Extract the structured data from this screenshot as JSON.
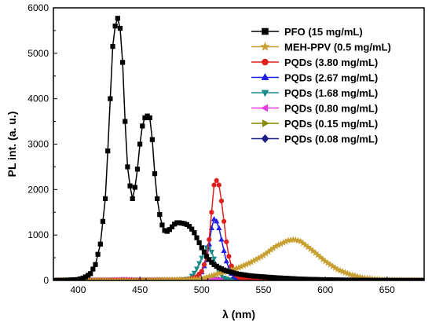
{
  "chart_data": {
    "type": "line",
    "xlabel": "λ (nm)",
    "ylabel": "PL int. (a. u.)",
    "xlim": [
      380,
      680
    ],
    "ylim": [
      0,
      6000
    ],
    "x_ticks": [
      400,
      450,
      500,
      550,
      600,
      650
    ],
    "y_ticks": [
      0,
      1000,
      2000,
      3000,
      4000,
      5000,
      6000
    ],
    "legend_position": "top-right",
    "series": [
      {
        "name": "PFO (15 mg/mL)",
        "color": "#000000",
        "marker": "square",
        "x": [
          380,
          390,
          400,
          405,
          410,
          414,
          418,
          422,
          424,
          426,
          428,
          430,
          432,
          434,
          436,
          438,
          440,
          442,
          444,
          446,
          448,
          450,
          452,
          454,
          456,
          458,
          460,
          462,
          464,
          466,
          468,
          470,
          472,
          474,
          476,
          478,
          480,
          482,
          484,
          486,
          488,
          490,
          492,
          494,
          496,
          498,
          500,
          502,
          504,
          506,
          508,
          510,
          512,
          514,
          516,
          518,
          520,
          522,
          524,
          526,
          528,
          530,
          535,
          540,
          550,
          560,
          570,
          580,
          600,
          620,
          650,
          680
        ],
        "y": [
          0,
          5,
          20,
          60,
          150,
          350,
          800,
          1800,
          2850,
          4000,
          5150,
          5600,
          5770,
          5550,
          4800,
          3500,
          2500,
          2080,
          1800,
          2050,
          2450,
          3000,
          3400,
          3580,
          3620,
          3580,
          3100,
          2350,
          1800,
          1450,
          1220,
          1100,
          1080,
          1120,
          1180,
          1240,
          1270,
          1270,
          1260,
          1250,
          1230,
          1190,
          1130,
          1050,
          940,
          830,
          720,
          620,
          530,
          460,
          400,
          350,
          310,
          280,
          255,
          230,
          210,
          195,
          180,
          165,
          150,
          140,
          120,
          100,
          80,
          60,
          45,
          30,
          15,
          5,
          2,
          0
        ]
      },
      {
        "name": "MEH-PPV (0.5 mg/mL)",
        "color": "#c8a032",
        "marker": "star",
        "x": [
          380,
          450,
          500,
          510,
          520,
          530,
          540,
          550,
          560,
          570,
          575,
          580,
          590,
          600,
          610,
          620,
          630,
          640,
          650,
          660,
          670,
          680
        ],
        "y": [
          0,
          0,
          30,
          120,
          200,
          280,
          400,
          550,
          750,
          880,
          900,
          860,
          650,
          420,
          240,
          130,
          60,
          30,
          10,
          5,
          2,
          0
        ]
      },
      {
        "name": "PQDs (3.80 mg/mL)",
        "color": "#e0201e",
        "marker": "circle",
        "x": [
          380,
          480,
          490,
          496,
          500,
          504,
          506,
          508,
          510,
          512,
          514,
          516,
          518,
          520,
          522,
          524,
          526,
          528,
          530,
          534,
          540,
          550,
          570,
          680
        ],
        "y": [
          0,
          5,
          20,
          80,
          200,
          500,
          900,
          1500,
          2100,
          2200,
          2100,
          1750,
          1300,
          850,
          530,
          320,
          190,
          110,
          70,
          35,
          20,
          10,
          5,
          0
        ]
      },
      {
        "name": "PQDs (2.67 mg/mL)",
        "color": "#1e1ee6",
        "marker": "triangle-up",
        "x": [
          380,
          480,
          490,
          496,
          500,
          504,
          506,
          508,
          510,
          512,
          514,
          516,
          518,
          520,
          522,
          524,
          526,
          530,
          540,
          680
        ],
        "y": [
          0,
          5,
          20,
          80,
          180,
          450,
          800,
          1150,
          1350,
          1300,
          1150,
          900,
          650,
          420,
          260,
          150,
          90,
          40,
          10,
          0
        ]
      },
      {
        "name": "PQDs (1.68 mg/mL)",
        "color": "#1e8a8a",
        "marker": "triangle-down",
        "x": [
          380,
          480,
          490,
          495,
          500,
          503,
          505,
          507,
          509,
          511,
          513,
          515,
          518,
          522,
          530,
          680
        ],
        "y": [
          0,
          5,
          40,
          200,
          500,
          700,
          750,
          700,
          560,
          400,
          250,
          140,
          60,
          20,
          5,
          0
        ]
      },
      {
        "name": "PQDs (0.80 mg/mL)",
        "color": "#e63ce6",
        "marker": "triangle-left",
        "x": [
          380,
          420,
          430,
          436,
          442,
          450,
          480,
          500,
          505,
          510,
          520,
          680
        ],
        "y": [
          0,
          5,
          15,
          25,
          15,
          5,
          5,
          15,
          30,
          20,
          5,
          0
        ]
      },
      {
        "name": "PQDs (0.15 mg/mL)",
        "color": "#8a8a00",
        "marker": "triangle-right",
        "x": [
          380,
          480,
          500,
          505,
          510,
          520,
          680
        ],
        "y": [
          0,
          5,
          15,
          40,
          25,
          5,
          0
        ]
      },
      {
        "name": "PQDs (0.08 mg/mL)",
        "color": "#1e1e8a",
        "marker": "diamond",
        "x": [
          380,
          480,
          500,
          505,
          510,
          520,
          680
        ],
        "y": [
          0,
          5,
          15,
          20,
          15,
          5,
          0
        ]
      }
    ]
  }
}
